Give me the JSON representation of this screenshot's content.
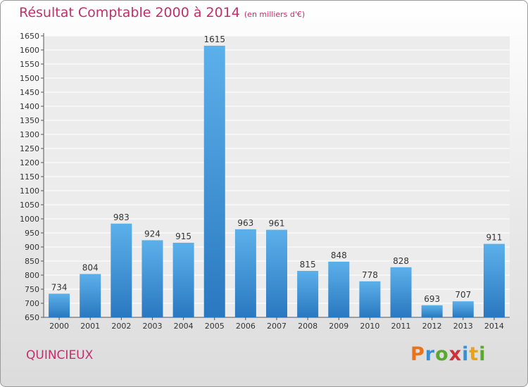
{
  "title": "Résultat Comptable 2000 à 2014",
  "subtitle": "(en milliers d'€)",
  "commune": "QUINCIEUX",
  "brand": {
    "letters": [
      "P",
      "r",
      "o",
      "x",
      "i",
      "t",
      "i"
    ],
    "colors": [
      "#e8731a",
      "#3a8fd0",
      "#5aa832",
      "#d0303a",
      "#3a8fd0",
      "#e8a21a",
      "#5aa832"
    ]
  },
  "colors": {
    "accent": "#c0306a",
    "bar_light": "#5cb0ea",
    "bar_dark": "#2a78c0"
  },
  "chart_data": {
    "type": "bar",
    "title": "Résultat Comptable 2000 à 2014",
    "xlabel": "",
    "ylabel": "",
    "categories": [
      "2000",
      "2001",
      "2002",
      "2003",
      "2004",
      "2005",
      "2006",
      "2007",
      "2008",
      "2009",
      "2010",
      "2011",
      "2012",
      "2013",
      "2014"
    ],
    "values": [
      734,
      804,
      983,
      924,
      915,
      1615,
      963,
      961,
      815,
      848,
      778,
      828,
      693,
      707,
      911
    ],
    "ylim": [
      650,
      1650
    ],
    "ytick_step": 50,
    "grid": true
  }
}
